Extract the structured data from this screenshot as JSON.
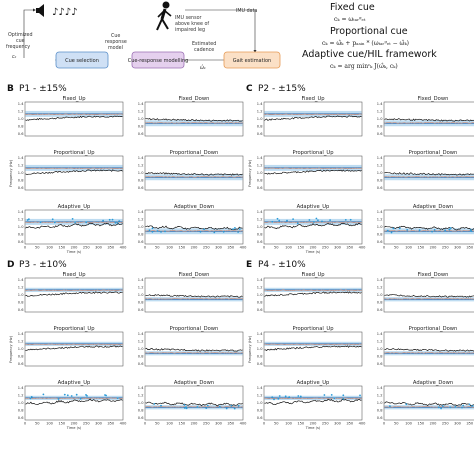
{
  "diagram": {
    "music_notes": "♪♪♪♪",
    "imu_sensor_label": "IMU sensor above knee of impaired leg",
    "imu_sensor_lines": [
      "IMU sensor",
      "above knee of",
      "impaired leg"
    ],
    "imu_data_label": "IMU data",
    "optimized_label_lines": [
      "Optimized",
      "cue",
      "frequency"
    ],
    "cue_response_model_lines": [
      "Cue",
      "response",
      "model"
    ],
    "estimated_cadence_lines": [
      "Estimated",
      "cadence"
    ],
    "boxes": {
      "cue_selection": "Cue selection",
      "cue_response_modelling": "Cue-response modelling",
      "gait_estimation": "Gait estimation"
    },
    "symbols": {
      "ck": "cₖ",
      "omega_hat": "ω̂ₖ"
    },
    "colors": {
      "cue_selection": "#cfe0f5",
      "cue_response": "#e5d0ee",
      "gait": "#fbe0c6"
    }
  },
  "cues": {
    "fixed_title": "Fixed cue",
    "fixed_eq": "cₖ = ωₜₐᵣᵍₑₜ",
    "proportional_title": "Proportional cue",
    "proportional_eq": "cₖ = ω̂ₖ + pₐₐᵢₙ * (ωₜₐᵣᵍₑₜ − ω̂ₖ)",
    "adaptive_title": "Adaptive cue/HIL framework",
    "adaptive_eq": "cₖ = arg minᶜₖ J(ω̂ₖ, cₖ)"
  },
  "panels": [
    {
      "letter": "B",
      "title": "P1 - ±15%",
      "plots": [
        "Fixed_Up",
        "Fixed_Down",
        "Proportional_Up",
        "Proportional_Down",
        "Adaptive_Up",
        "Adaptive_Down"
      ],
      "ylabel": "Frequency (Hz)",
      "xlabel": "Time (s)",
      "yticks": [
        "1.4",
        "1.2",
        "1.0",
        "0.8",
        "0.6"
      ],
      "xticks": [
        "0",
        "50",
        "100",
        "150",
        "200",
        "250",
        "300",
        "350",
        "400"
      ]
    },
    {
      "letter": "C",
      "title": "P2 - ±15%",
      "plots": [
        "Fixed_Up",
        "Fixed_Down",
        "Proportional_Up",
        "Proportional_Down",
        "Adaptive_Up",
        "Adaptive_Down"
      ],
      "ylabel": "Frequency (Hz)",
      "xlabel": "Time (s)",
      "yticks": [
        "1.4",
        "1.2",
        "1.0",
        "0.8",
        "0.6"
      ],
      "xticks": [
        "0",
        "50",
        "100",
        "150",
        "200",
        "250",
        "300",
        "350",
        "400"
      ]
    },
    {
      "letter": "D",
      "title": "P3 - ±10%",
      "plots": [
        "Fixed_Up",
        "Fixed_Down",
        "Proportional_Up",
        "Proportional_Down",
        "Adaptive_Up",
        "Adaptive_Down"
      ],
      "ylabel": "Frequency (Hz)",
      "xlabel": "Time (s)",
      "yticks": [
        "1.4",
        "1.2",
        "1.0",
        "0.8",
        "0.6"
      ],
      "xticks": [
        "0",
        "50",
        "100",
        "150",
        "200",
        "250",
        "300",
        "350",
        "400"
      ]
    },
    {
      "letter": "E",
      "title": "P4 - ±10%",
      "plots": [
        "Fixed_Up",
        "Fixed_Down",
        "Proportional_Up",
        "Proportional_Down",
        "Adaptive_Up",
        "Adaptive_Down"
      ],
      "ylabel": "Frequency (Hz)",
      "xlabel": "Time (s)",
      "yticks": [
        "1.4",
        "1.2",
        "1.0",
        "0.8",
        "0.6"
      ],
      "xticks": [
        "0",
        "50",
        "100",
        "150",
        "200",
        "250",
        "300",
        "350",
        "400"
      ]
    }
  ],
  "plot_colors": {
    "band": "#a8d0ec",
    "target": "#1f5fa8",
    "cadence": "#111111",
    "cue": "#e26a3a",
    "points": "#2a9bd8"
  }
}
